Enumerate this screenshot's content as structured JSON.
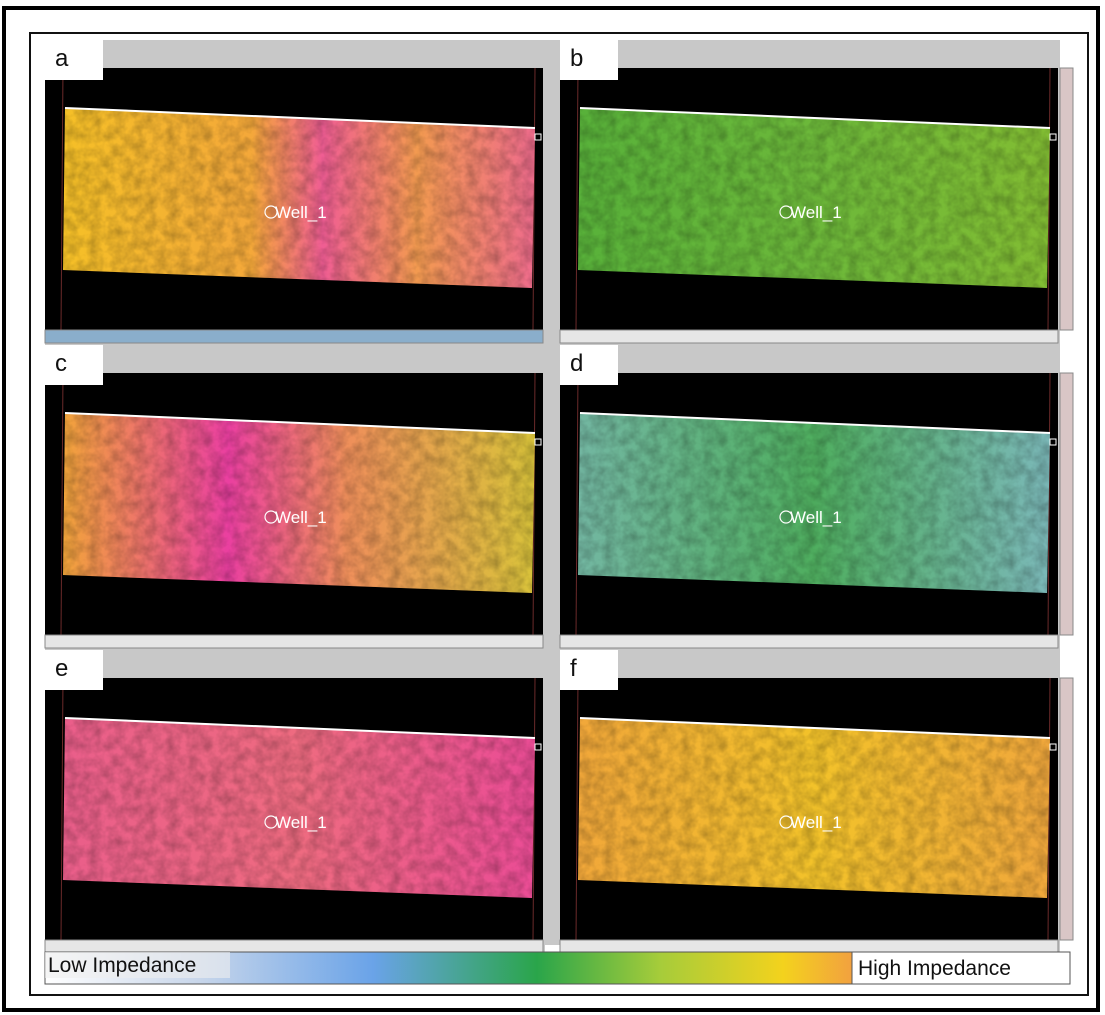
{
  "panels": [
    {
      "label": "a",
      "well": "Well_1"
    },
    {
      "label": "b",
      "well": "Well_1"
    },
    {
      "label": "c",
      "well": "Well_1"
    },
    {
      "label": "d",
      "well": "Well_1"
    },
    {
      "label": "e",
      "well": "Well_1"
    },
    {
      "label": "f",
      "well": "Well_1"
    }
  ],
  "colorbar": {
    "low": "Low Impedance",
    "high": "High Impedance"
  }
}
